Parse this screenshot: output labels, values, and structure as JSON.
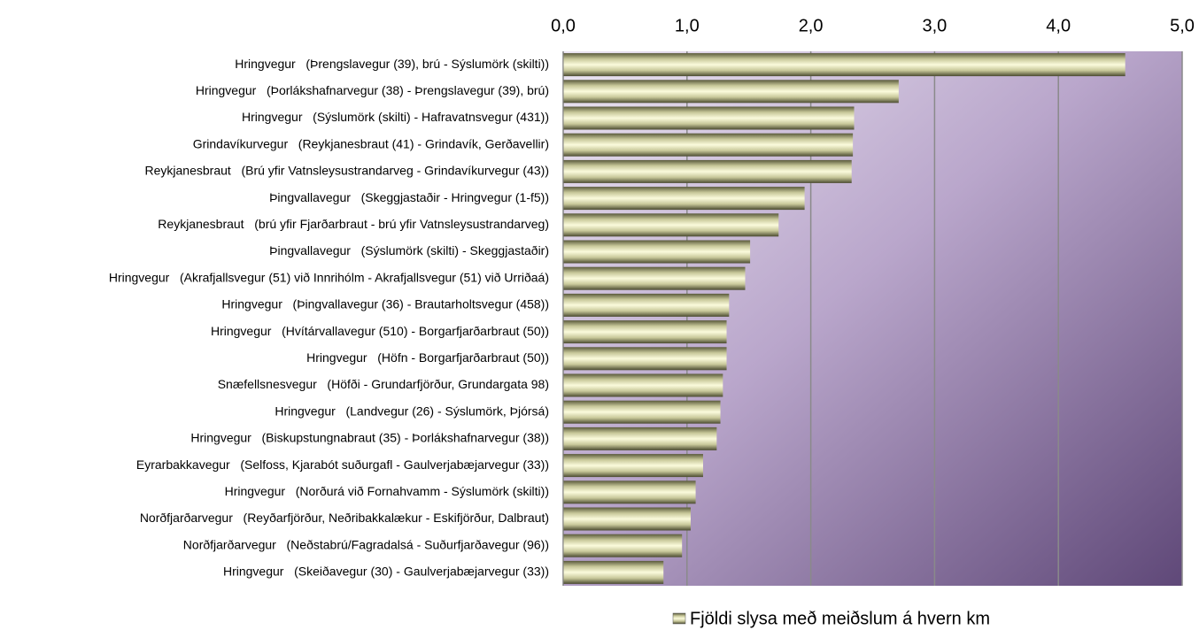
{
  "chart_data": {
    "type": "bar",
    "orientation": "horizontal",
    "categories": [
      "Hringvegur   (Þrengslavegur (39), brú - Sýslumörk (skilti))",
      "Hringvegur   (Þorlákshafnarvegur (38) - Þrengslavegur (39), brú)",
      "Hringvegur   (Sýslumörk (skilti) - Hafravatnsvegur (431))",
      "Grindavíkurvegur   (Reykjanesbraut (41) - Grindavík, Gerðavellir)",
      "Reykjanesbraut   (Brú yfir Vatnsleysustrandarveg - Grindavíkurvegur (43))",
      "Þingvallavegur   (Skeggjastaðir - Hringvegur (1-f5))",
      "Reykjanesbraut   (brú yfir Fjarðarbraut - brú yfir Vatnsleysustrandarveg)",
      "Þingvallavegur   (Sýslumörk (skilti) - Skeggjastaðir)",
      "Hringvegur   (Akrafjallsvegur (51) við Innrihólm - Akrafjallsvegur (51) við Urriðaá)",
      "Hringvegur   (Þingvallavegur (36) - Brautarholtsvegur (458))",
      "Hringvegur   (Hvítárvallavegur (510) - Borgarfjarðarbraut (50))",
      "Hringvegur   (Höfn - Borgarfjarðarbraut (50))",
      "Snæfellsnesvegur   (Höfði - Grundarfjörður, Grundargata 98)",
      "Hringvegur   (Landvegur (26) - Sýslumörk, Þjórsá)",
      "Hringvegur   (Biskupstungnabraut (35) - Þorlákshafnarvegur (38))",
      "Eyrarbakkavegur   (Selfoss, Kjarabót suðurgafl - Gaulverjabæjarvegur (33))",
      "Hringvegur   (Norðurá við Fornahvamm - Sýslumörk (skilti))",
      "Norðfjarðarvegur   (Reyðarfjörður, Neðribakkalækur - Eskifjörður, Dalbraut)",
      "Norðfjarðarvegur   (Neðstabrú/Fagradalsá - Suðurfjarðavegur (96))",
      "Hringvegur   (Skeiðavegur (30) - Gaulverjabæjarvegur (33))"
    ],
    "series": [
      {
        "name": "Fjöldi slysa með meiðslum á hvern km",
        "color": "#f0f0c0",
        "values": [
          4.54,
          2.71,
          2.35,
          2.34,
          2.33,
          1.95,
          1.74,
          1.51,
          1.47,
          1.34,
          1.32,
          1.32,
          1.29,
          1.27,
          1.24,
          1.13,
          1.07,
          1.03,
          0.96,
          0.81
        ]
      }
    ],
    "xlim": [
      0,
      5
    ],
    "xticks": [
      {
        "value": 0,
        "label": "0,0"
      },
      {
        "value": 1,
        "label": "1,0"
      },
      {
        "value": 2,
        "label": "2,0"
      },
      {
        "value": 3,
        "label": "3,0"
      },
      {
        "value": 4,
        "label": "4,0"
      },
      {
        "value": 5,
        "label": "5,0"
      }
    ],
    "grid": true,
    "legend": "bottom"
  }
}
